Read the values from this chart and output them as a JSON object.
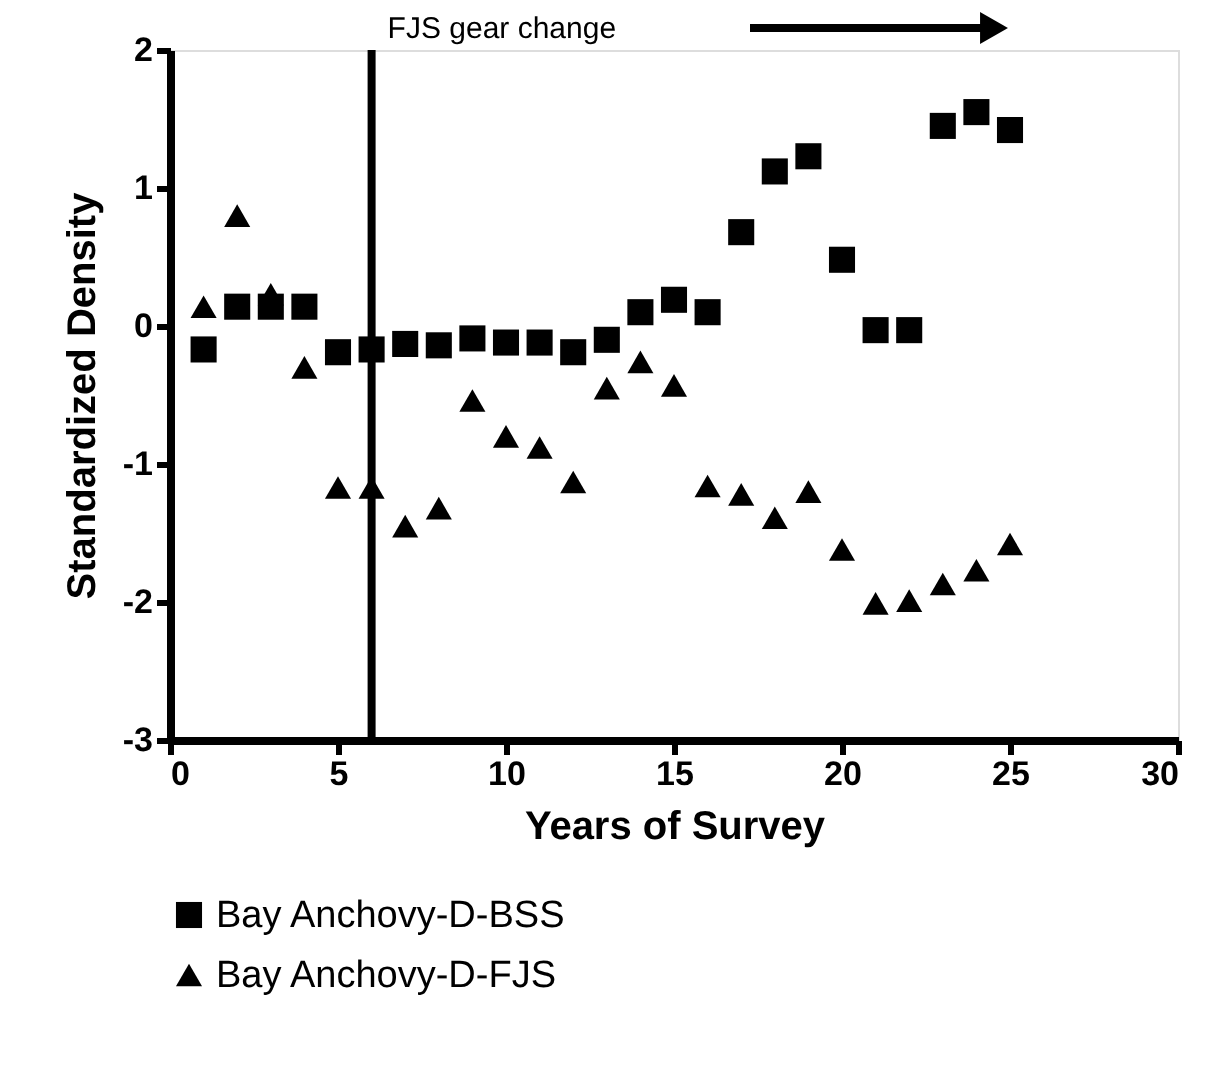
{
  "chart_data": {
    "type": "scatter",
    "xlabel": "Years of Survey",
    "ylabel": "Standardized Density",
    "x": [
      1,
      2,
      3,
      4,
      5,
      6,
      7,
      8,
      9,
      10,
      11,
      12,
      13,
      14,
      15,
      16,
      17,
      18,
      19,
      20,
      21,
      22,
      23,
      24,
      25
    ],
    "series": [
      {
        "name": "Bay Anchovy-D-BSS",
        "color": "#000000",
        "marker": "square",
        "values": [
          -0.17,
          0.14,
          0.14,
          0.14,
          -0.19,
          -0.17,
          -0.13,
          -0.14,
          -0.09,
          -0.12,
          -0.12,
          -0.19,
          -0.1,
          0.1,
          0.19,
          0.1,
          0.68,
          1.12,
          1.23,
          0.48,
          -0.03,
          -0.03,
          1.45,
          1.55,
          1.42
        ]
      },
      {
        "name": "Bay Anchovy-D-FJS",
        "color": "#000000",
        "marker": "triangle",
        "values": [
          0.14,
          0.8,
          0.23,
          -0.3,
          -1.17,
          -1.17,
          -1.45,
          -1.32,
          -0.54,
          -0.8,
          -0.88,
          -1.13,
          -0.45,
          -0.26,
          -0.43,
          -1.16,
          -1.22,
          -1.39,
          -1.2,
          -1.62,
          -2.01,
          -1.99,
          -1.87,
          -1.77,
          -1.58
        ]
      }
    ],
    "xlim": [
      0,
      30
    ],
    "xticks": [
      0,
      5,
      10,
      15,
      20,
      25,
      30
    ],
    "ylim": [
      -3,
      2
    ],
    "yticks": [
      -3,
      -2,
      -1,
      0,
      1,
      2
    ],
    "grid": false,
    "legend": "bottom",
    "ref_lines": [
      {
        "axis": "x",
        "value": 6,
        "label": "FJS gear change",
        "color": "#000000"
      }
    ]
  }
}
